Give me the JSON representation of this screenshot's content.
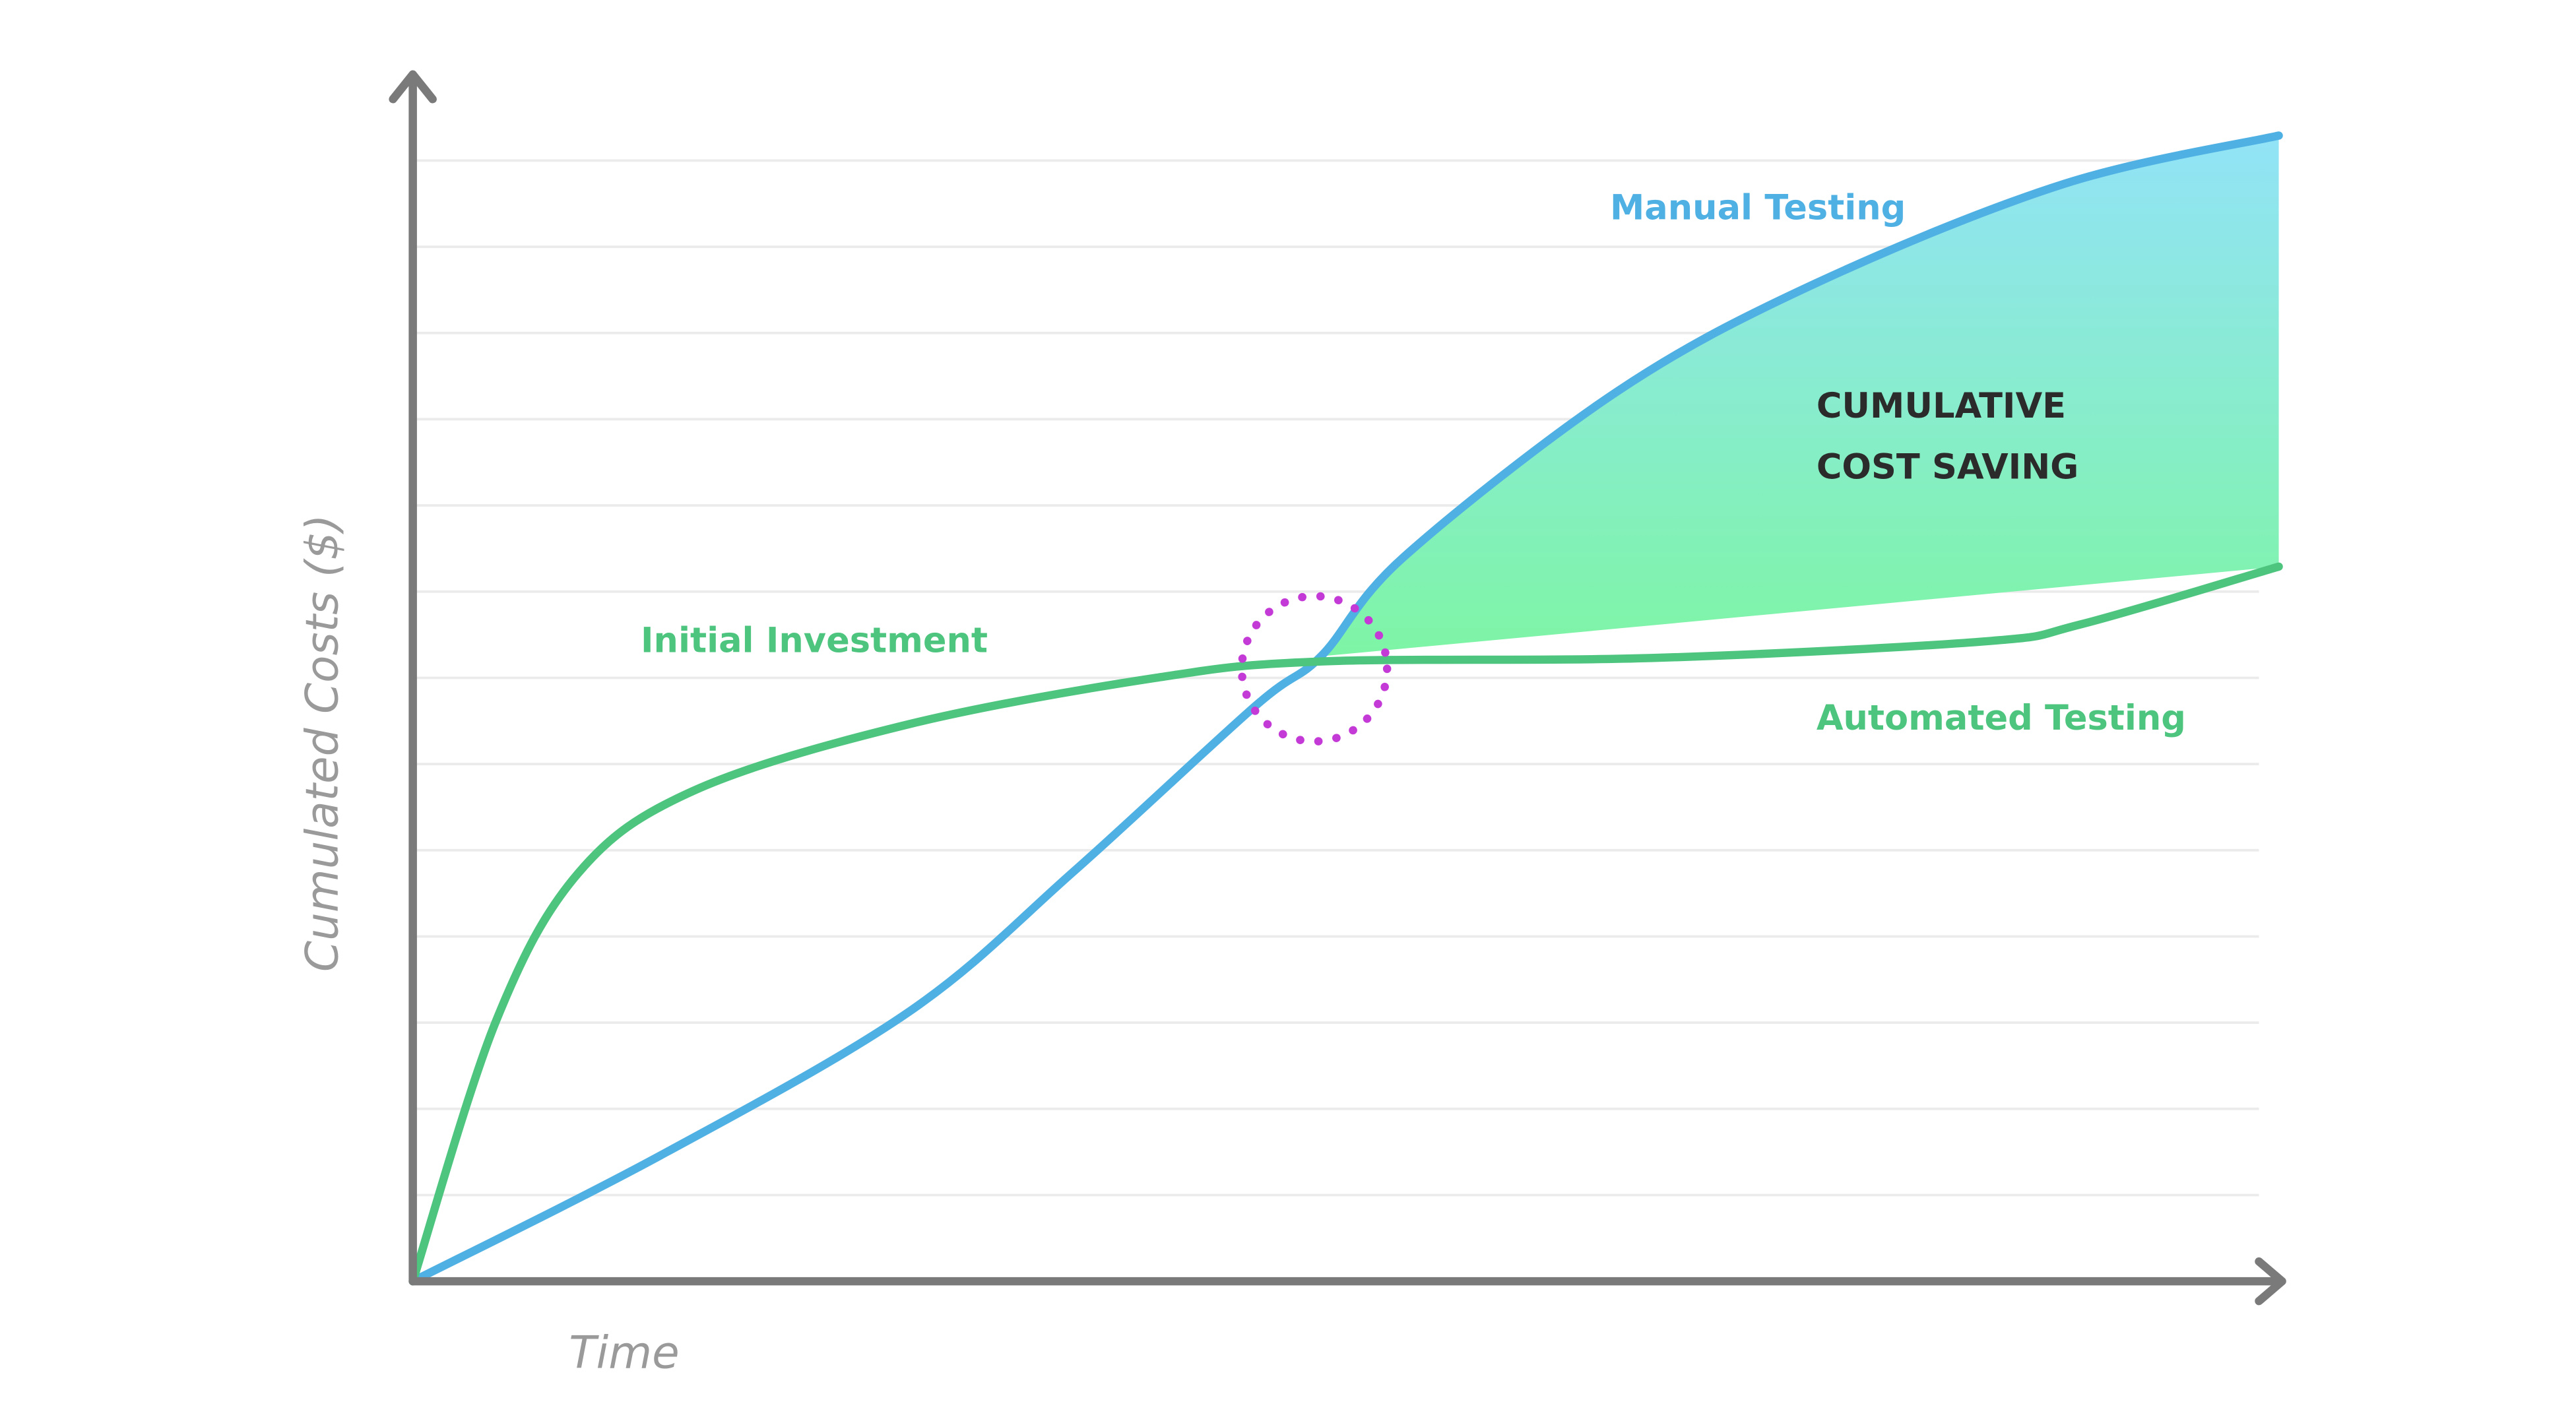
{
  "chart_data": {
    "type": "line",
    "xlabel": "Time",
    "ylabel": "Cumulated Costs ($)",
    "xlim": [
      0,
      22.7
    ],
    "ylim": [
      0,
      14
    ],
    "yticks": [
      1,
      2,
      3,
      4,
      5,
      6,
      7,
      8,
      9,
      10,
      11,
      12,
      13
    ],
    "grid": true,
    "series": [
      {
        "name": "Manual Testing",
        "color": "#4fb0e3",
        "x": [
          0,
          3,
          6,
          8,
          10.2,
          11,
          12,
          14.6,
          17,
          20,
          22.6
        ],
        "values": [
          0,
          1.46,
          3.12,
          4.75,
          6.67,
          7.25,
          8.4,
          10.33,
          11.58,
          12.73,
          13.29
        ]
      },
      {
        "name": "Automated Testing",
        "color": "#4dc57f",
        "x": [
          0,
          1,
          2,
          3.4,
          6,
          9,
          11,
          15,
          19,
          20.2,
          22.6
        ],
        "values": [
          0,
          3,
          4.73,
          5.69,
          6.46,
          7,
          7.19,
          7.23,
          7.42,
          7.62,
          8.29
        ]
      }
    ],
    "annotations": [
      {
        "text": "Initial Investment",
        "color": "#4dc57f"
      }
    ],
    "saving_label": [
      "CUMULATIVE",
      "COST SAVING"
    ],
    "area_colors": [
      "#92e3f7",
      "#7ef5a5"
    ]
  }
}
